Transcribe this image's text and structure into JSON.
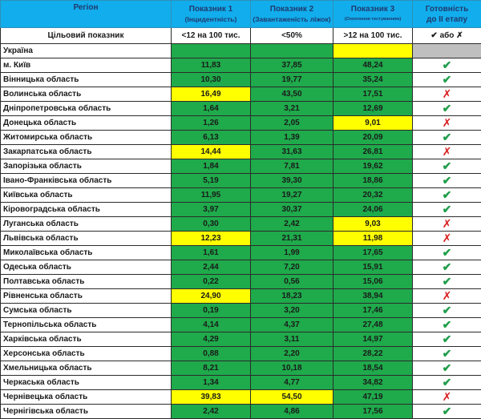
{
  "header": {
    "region": "Регіон",
    "p1_title": "Показник 1",
    "p1_sub": "(Інцидентність)",
    "p2_title": "Показник 2",
    "p2_sub": "(Завантаженість ліжок)",
    "p3_title": "Показник 3",
    "p3_sub": "(Охоплення тестуванням)",
    "ready_line1": "Готовність",
    "ready_line2": "до ІІ етапу"
  },
  "target": {
    "label": "Цільовий показник",
    "p1": "<12 на 100 тис.",
    "p2": "<50%",
    "p3": ">12 на 100 тис.",
    "ready": "✔ або ✗"
  },
  "colors": {
    "green": "#1faa4b",
    "yellow": "#ffff00",
    "gray": "#bfbfbf",
    "header": "#12adec",
    "check": "#1f9e4a",
    "cross": "#d91b1b"
  },
  "rows": [
    {
      "region": "Україна",
      "p1": "",
      "p2": "",
      "p3": "",
      "c1": "g",
      "c2": "g",
      "c3": "y",
      "ready": null
    },
    {
      "region": "м. Київ",
      "p1": "11,83",
      "p2": "37,85",
      "p3": "48,24",
      "c1": "g",
      "c2": "g",
      "c3": "g",
      "ready": true
    },
    {
      "region": "Вінницька область",
      "p1": "10,30",
      "p2": "19,77",
      "p3": "35,24",
      "c1": "g",
      "c2": "g",
      "c3": "g",
      "ready": true
    },
    {
      "region": "Волинська область",
      "p1": "16,49",
      "p2": "43,50",
      "p3": "17,51",
      "c1": "y",
      "c2": "g",
      "c3": "g",
      "ready": false
    },
    {
      "region": "Дніпропетровська область",
      "p1": "1,64",
      "p2": "3,21",
      "p3": "12,69",
      "c1": "g",
      "c2": "g",
      "c3": "g",
      "ready": true
    },
    {
      "region": "Донецька область",
      "p1": "1,26",
      "p2": "2,05",
      "p3": "9,01",
      "c1": "g",
      "c2": "g",
      "c3": "y",
      "ready": false
    },
    {
      "region": "Житомирська область",
      "p1": "6,13",
      "p2": "1,39",
      "p3": "20,09",
      "c1": "g",
      "c2": "g",
      "c3": "g",
      "ready": true
    },
    {
      "region": "Закарпатська область",
      "p1": "14,44",
      "p2": "31,63",
      "p3": "26,81",
      "c1": "y",
      "c2": "g",
      "c3": "g",
      "ready": false
    },
    {
      "region": "Запорізька область",
      "p1": "1,84",
      "p2": "7,81",
      "p3": "19,62",
      "c1": "g",
      "c2": "g",
      "c3": "g",
      "ready": true
    },
    {
      "region": "Івано-Франківська область",
      "p1": "5,19",
      "p2": "39,30",
      "p3": "18,86",
      "c1": "g",
      "c2": "g",
      "c3": "g",
      "ready": true
    },
    {
      "region": "Київська область",
      "p1": "11,95",
      "p2": "19,27",
      "p3": "20,32",
      "c1": "g",
      "c2": "g",
      "c3": "g",
      "ready": true
    },
    {
      "region": "Кіровоградська область",
      "p1": "3,97",
      "p2": "30,37",
      "p3": "24,06",
      "c1": "g",
      "c2": "g",
      "c3": "g",
      "ready": true
    },
    {
      "region": "Луганська область",
      "p1": "0,30",
      "p2": "2,42",
      "p3": "9,03",
      "c1": "g",
      "c2": "g",
      "c3": "y",
      "ready": false
    },
    {
      "region": "Львівська область",
      "p1": "12,23",
      "p2": "21,31",
      "p3": "11,98",
      "c1": "y",
      "c2": "g",
      "c3": "y",
      "ready": false
    },
    {
      "region": "Миколаївська область",
      "p1": "1,61",
      "p2": "1,99",
      "p3": "17,65",
      "c1": "g",
      "c2": "g",
      "c3": "g",
      "ready": true
    },
    {
      "region": "Одеська область",
      "p1": "2,44",
      "p2": "7,20",
      "p3": "15,91",
      "c1": "g",
      "c2": "g",
      "c3": "g",
      "ready": true
    },
    {
      "region": "Полтавська область",
      "p1": "0,22",
      "p2": "0,56",
      "p3": "15,06",
      "c1": "g",
      "c2": "g",
      "c3": "g",
      "ready": true
    },
    {
      "region": "Рівненська область",
      "p1": "24,90",
      "p2": "18,23",
      "p3": "38,94",
      "c1": "y",
      "c2": "g",
      "c3": "g",
      "ready": false
    },
    {
      "region": "Сумська область",
      "p1": "0,19",
      "p2": "3,20",
      "p3": "17,46",
      "c1": "g",
      "c2": "g",
      "c3": "g",
      "ready": true
    },
    {
      "region": "Тернопільська область",
      "p1": "4,14",
      "p2": "4,37",
      "p3": "27,48",
      "c1": "g",
      "c2": "g",
      "c3": "g",
      "ready": true
    },
    {
      "region": "Харківська область",
      "p1": "4,29",
      "p2": "3,11",
      "p3": "14,97",
      "c1": "g",
      "c2": "g",
      "c3": "g",
      "ready": true
    },
    {
      "region": "Херсонська область",
      "p1": "0,88",
      "p2": "2,20",
      "p3": "28,22",
      "c1": "g",
      "c2": "g",
      "c3": "g",
      "ready": true
    },
    {
      "region": "Хмельницька область",
      "p1": "8,21",
      "p2": "10,18",
      "p3": "18,54",
      "c1": "g",
      "c2": "g",
      "c3": "g",
      "ready": true
    },
    {
      "region": "Черкаська область",
      "p1": "1,34",
      "p2": "4,77",
      "p3": "34,82",
      "c1": "g",
      "c2": "g",
      "c3": "g",
      "ready": true
    },
    {
      "region": "Чернівецька область",
      "p1": "39,83",
      "p2": "54,50",
      "p3": "47,19",
      "c1": "y",
      "c2": "y",
      "c3": "g",
      "ready": false
    },
    {
      "region": "Чернігівська область",
      "p1": "2,42",
      "p2": "4,86",
      "p3": "17,56",
      "c1": "g",
      "c2": "g",
      "c3": "g",
      "ready": true
    }
  ]
}
